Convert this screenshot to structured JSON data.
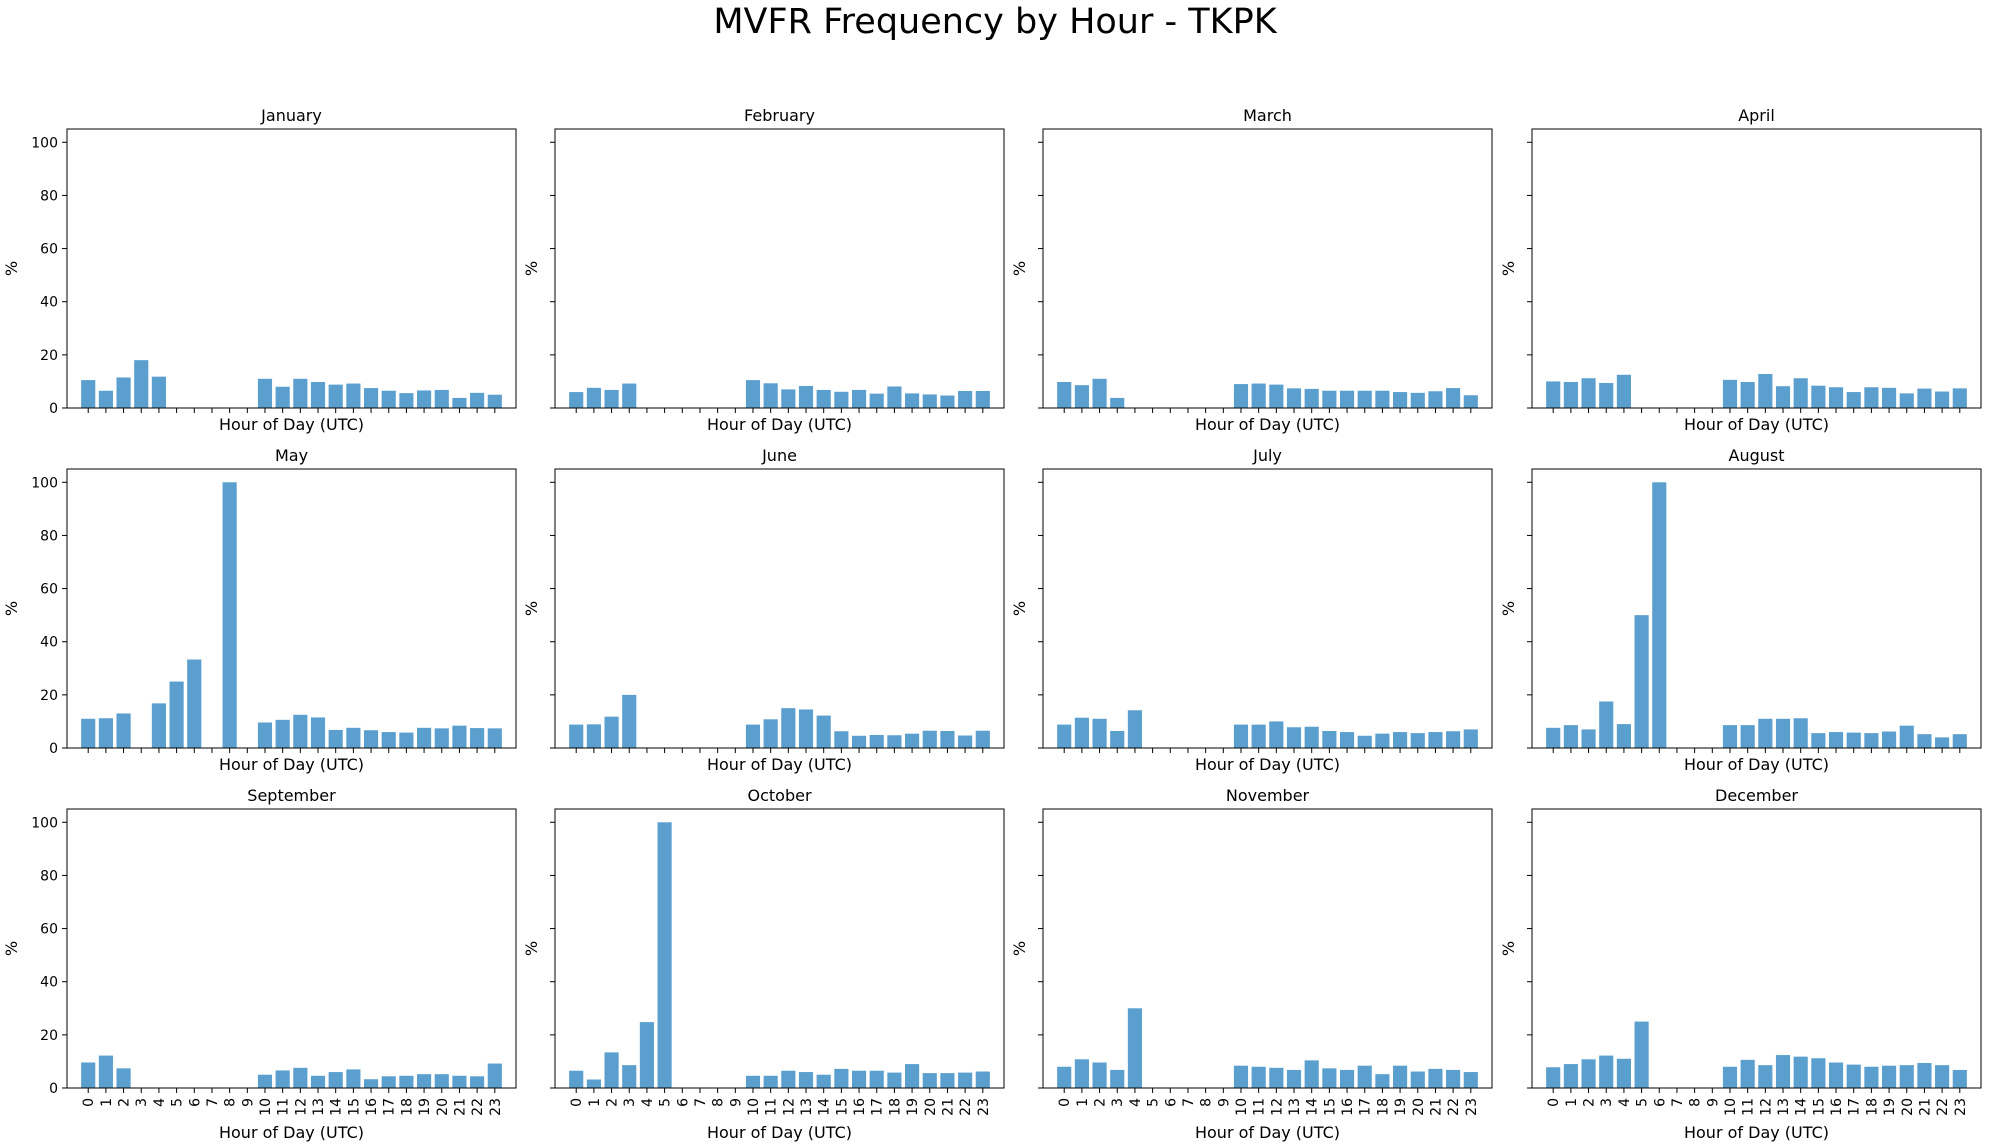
{
  "title": "MVFR Frequency by Hour - TKPK",
  "colors": {
    "bar": "#5b9fcf",
    "axis": "#000000"
  },
  "chart_data": [
    {
      "type": "bar",
      "title": "January",
      "xlabel": "Hour of Day (UTC)",
      "ylabel": "%",
      "ylim": [
        0,
        105
      ],
      "yticks": [
        0,
        20,
        40,
        60,
        80,
        100
      ],
      "x_tick_labels_visible": false,
      "categories": [
        "0",
        "1",
        "2",
        "3",
        "4",
        "5",
        "6",
        "7",
        "8",
        "9",
        "10",
        "11",
        "12",
        "13",
        "14",
        "15",
        "16",
        "17",
        "18",
        "19",
        "20",
        "21",
        "22",
        "23"
      ],
      "values": [
        10.5,
        6.5,
        11.5,
        18,
        11.8,
        0,
        0,
        0,
        0,
        0,
        11,
        8,
        11,
        9.8,
        8.8,
        9.2,
        7.5,
        6.5,
        5.6,
        6.6,
        6.8,
        3.8,
        5.7,
        5
      ]
    },
    {
      "type": "bar",
      "title": "February",
      "xlabel": "Hour of Day (UTC)",
      "ylabel": "%",
      "ylim": [
        0,
        105
      ],
      "yticks": [
        0,
        20,
        40,
        60,
        80,
        100
      ],
      "y_tick_labels_visible": false,
      "x_tick_labels_visible": false,
      "categories": [
        "0",
        "1",
        "2",
        "3",
        "4",
        "5",
        "6",
        "7",
        "8",
        "9",
        "10",
        "11",
        "12",
        "13",
        "14",
        "15",
        "16",
        "17",
        "18",
        "19",
        "20",
        "21",
        "22",
        "23"
      ],
      "values": [
        6,
        7.6,
        6.8,
        9.2,
        0,
        0,
        0,
        0,
        0,
        0,
        10.5,
        9.3,
        7,
        8.3,
        6.8,
        6.1,
        6.8,
        5.4,
        8.1,
        5.5,
        5.1,
        4.7,
        6.4,
        6.4
      ]
    },
    {
      "type": "bar",
      "title": "March",
      "xlabel": "Hour of Day (UTC)",
      "ylabel": "%",
      "ylim": [
        0,
        105
      ],
      "yticks": [
        0,
        20,
        40,
        60,
        80,
        100
      ],
      "y_tick_labels_visible": false,
      "x_tick_labels_visible": false,
      "categories": [
        "0",
        "1",
        "2",
        "3",
        "4",
        "5",
        "6",
        "7",
        "8",
        "9",
        "10",
        "11",
        "12",
        "13",
        "14",
        "15",
        "16",
        "17",
        "18",
        "19",
        "20",
        "21",
        "22",
        "23"
      ],
      "values": [
        9.8,
        8.6,
        11,
        3.8,
        0,
        0,
        0,
        0,
        0,
        0,
        9,
        9.2,
        8.8,
        7.4,
        7.2,
        6.5,
        6.5,
        6.5,
        6.5,
        6,
        5.7,
        6.3,
        7.5,
        4.8
      ]
    },
    {
      "type": "bar",
      "title": "April",
      "xlabel": "Hour of Day (UTC)",
      "ylabel": "%",
      "ylim": [
        0,
        105
      ],
      "yticks": [
        0,
        20,
        40,
        60,
        80,
        100
      ],
      "y_tick_labels_visible": false,
      "x_tick_labels_visible": false,
      "categories": [
        "0",
        "1",
        "2",
        "3",
        "4",
        "5",
        "6",
        "7",
        "8",
        "9",
        "10",
        "11",
        "12",
        "13",
        "14",
        "15",
        "16",
        "17",
        "18",
        "19",
        "20",
        "21",
        "22",
        "23"
      ],
      "values": [
        10,
        9.8,
        11.2,
        9.4,
        12.5,
        0,
        0,
        0,
        0,
        0,
        10.6,
        9.8,
        12.8,
        8.2,
        11.2,
        8.4,
        7.8,
        6,
        7.8,
        7.6,
        5.5,
        7.3,
        6.2,
        7.4
      ]
    },
    {
      "type": "bar",
      "title": "May",
      "xlabel": "Hour of Day (UTC)",
      "ylabel": "%",
      "ylim": [
        0,
        105
      ],
      "yticks": [
        0,
        20,
        40,
        60,
        80,
        100
      ],
      "x_tick_labels_visible": false,
      "categories": [
        "0",
        "1",
        "2",
        "3",
        "4",
        "5",
        "6",
        "7",
        "8",
        "9",
        "10",
        "11",
        "12",
        "13",
        "14",
        "15",
        "16",
        "17",
        "18",
        "19",
        "20",
        "21",
        "22",
        "23"
      ],
      "values": [
        11,
        11.2,
        13,
        0,
        16.8,
        25,
        33.3,
        0,
        100,
        0,
        9.6,
        10.6,
        12.5,
        11.5,
        6.8,
        7.6,
        6.7,
        6,
        5.8,
        7.6,
        7.4,
        8.4,
        7.5,
        7.4
      ]
    },
    {
      "type": "bar",
      "title": "June",
      "xlabel": "Hour of Day (UTC)",
      "ylabel": "%",
      "ylim": [
        0,
        105
      ],
      "yticks": [
        0,
        20,
        40,
        60,
        80,
        100
      ],
      "y_tick_labels_visible": false,
      "x_tick_labels_visible": false,
      "categories": [
        "0",
        "1",
        "2",
        "3",
        "4",
        "5",
        "6",
        "7",
        "8",
        "9",
        "10",
        "11",
        "12",
        "13",
        "14",
        "15",
        "16",
        "17",
        "18",
        "19",
        "20",
        "21",
        "22",
        "23"
      ],
      "values": [
        8.8,
        8.9,
        11.8,
        20,
        0,
        0,
        0,
        0,
        0,
        0,
        8.8,
        10.8,
        15,
        14.5,
        12.2,
        6.3,
        4.6,
        4.9,
        4.8,
        5.4,
        6.5,
        6.4,
        4.7,
        6.5
      ]
    },
    {
      "type": "bar",
      "title": "July",
      "xlabel": "Hour of Day (UTC)",
      "ylabel": "%",
      "ylim": [
        0,
        105
      ],
      "yticks": [
        0,
        20,
        40,
        60,
        80,
        100
      ],
      "y_tick_labels_visible": false,
      "x_tick_labels_visible": false,
      "categories": [
        "0",
        "1",
        "2",
        "3",
        "4",
        "5",
        "6",
        "7",
        "8",
        "9",
        "10",
        "11",
        "12",
        "13",
        "14",
        "15",
        "16",
        "17",
        "18",
        "19",
        "20",
        "21",
        "22",
        "23"
      ],
      "values": [
        8.8,
        11.4,
        11,
        6.4,
        14.2,
        0,
        0,
        0,
        0,
        0,
        8.8,
        8.8,
        10,
        7.8,
        8,
        6.4,
        6,
        4.6,
        5.4,
        6,
        5.6,
        6,
        6.3,
        7
      ]
    },
    {
      "type": "bar",
      "title": "August",
      "xlabel": "Hour of Day (UTC)",
      "ylabel": "%",
      "ylim": [
        0,
        105
      ],
      "yticks": [
        0,
        20,
        40,
        60,
        80,
        100
      ],
      "y_tick_labels_visible": false,
      "x_tick_labels_visible": false,
      "categories": [
        "0",
        "1",
        "2",
        "3",
        "4",
        "5",
        "6",
        "7",
        "8",
        "9",
        "10",
        "11",
        "12",
        "13",
        "14",
        "15",
        "16",
        "17",
        "18",
        "19",
        "20",
        "21",
        "22",
        "23"
      ],
      "values": [
        7.6,
        8.6,
        7,
        17.5,
        9,
        50,
        100,
        0,
        0,
        0,
        8.6,
        8.6,
        11,
        11,
        11.2,
        5.6,
        6,
        5.8,
        5.6,
        6.2,
        8.4,
        5.2,
        4,
        5.2
      ]
    },
    {
      "type": "bar",
      "title": "September",
      "xlabel": "Hour of Day (UTC)",
      "ylabel": "%",
      "ylim": [
        0,
        105
      ],
      "yticks": [
        0,
        20,
        40,
        60,
        80,
        100
      ],
      "categories": [
        "0",
        "1",
        "2",
        "3",
        "4",
        "5",
        "6",
        "7",
        "8",
        "9",
        "10",
        "11",
        "12",
        "13",
        "14",
        "15",
        "16",
        "17",
        "18",
        "19",
        "20",
        "21",
        "22",
        "23"
      ],
      "values": [
        9.6,
        12.2,
        7.4,
        0,
        0,
        0,
        0,
        0,
        0,
        0,
        5,
        6.6,
        7.6,
        4.6,
        6,
        7,
        3.3,
        4.4,
        4.6,
        5.2,
        5.2,
        4.6,
        4.4,
        9.2
      ]
    },
    {
      "type": "bar",
      "title": "October",
      "xlabel": "Hour of Day (UTC)",
      "ylabel": "%",
      "ylim": [
        0,
        105
      ],
      "yticks": [
        0,
        20,
        40,
        60,
        80,
        100
      ],
      "y_tick_labels_visible": false,
      "categories": [
        "0",
        "1",
        "2",
        "3",
        "4",
        "5",
        "6",
        "7",
        "8",
        "9",
        "10",
        "11",
        "12",
        "13",
        "14",
        "15",
        "16",
        "17",
        "18",
        "19",
        "20",
        "21",
        "22",
        "23"
      ],
      "values": [
        6.5,
        3.2,
        13.4,
        8.6,
        24.8,
        100,
        0,
        0,
        0,
        0,
        4.6,
        4.6,
        6.5,
        6,
        5,
        7.2,
        6.5,
        6.5,
        5.8,
        9,
        5.6,
        5.6,
        5.8,
        6.2
      ]
    },
    {
      "type": "bar",
      "title": "November",
      "xlabel": "Hour of Day (UTC)",
      "ylabel": "%",
      "ylim": [
        0,
        105
      ],
      "yticks": [
        0,
        20,
        40,
        60,
        80,
        100
      ],
      "y_tick_labels_visible": false,
      "categories": [
        "0",
        "1",
        "2",
        "3",
        "4",
        "5",
        "6",
        "7",
        "8",
        "9",
        "10",
        "11",
        "12",
        "13",
        "14",
        "15",
        "16",
        "17",
        "18",
        "19",
        "20",
        "21",
        "22",
        "23"
      ],
      "values": [
        8,
        10.8,
        9.6,
        6.8,
        30,
        0,
        0,
        0,
        0,
        0,
        8.4,
        8,
        7.6,
        6.8,
        10.4,
        7.4,
        6.8,
        8.4,
        5.2,
        8.4,
        6.2,
        7.2,
        6.8,
        6
      ]
    },
    {
      "type": "bar",
      "title": "December",
      "xlabel": "Hour of Day (UTC)",
      "ylabel": "%",
      "ylim": [
        0,
        105
      ],
      "yticks": [
        0,
        20,
        40,
        60,
        80,
        100
      ],
      "y_tick_labels_visible": false,
      "categories": [
        "0",
        "1",
        "2",
        "3",
        "4",
        "5",
        "6",
        "7",
        "8",
        "9",
        "10",
        "11",
        "12",
        "13",
        "14",
        "15",
        "16",
        "17",
        "18",
        "19",
        "20",
        "21",
        "22",
        "23"
      ],
      "values": [
        7.8,
        9,
        10.8,
        12.2,
        11,
        25,
        0,
        0,
        0,
        0,
        8,
        10.6,
        8.6,
        12.4,
        11.8,
        11.2,
        9.6,
        8.8,
        8,
        8.4,
        8.6,
        9.4,
        8.6,
        6.8
      ]
    }
  ]
}
